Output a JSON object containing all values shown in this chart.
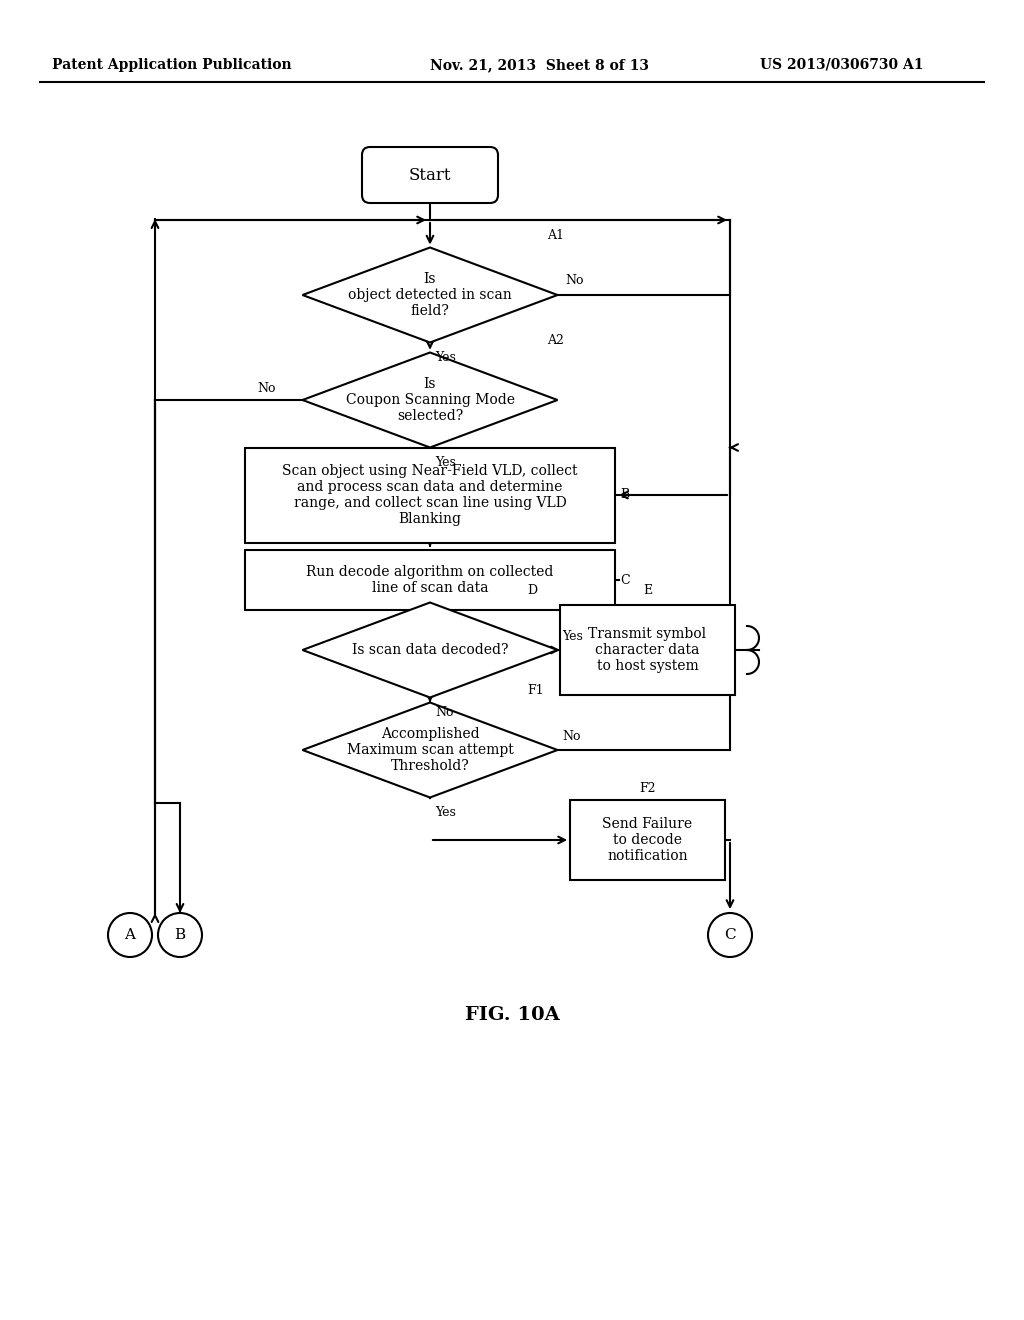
{
  "bg_color": "#ffffff",
  "line_color": "#000000",
  "header_left": "Patent Application Publication",
  "header_mid": "Nov. 21, 2013  Sheet 8 of 13",
  "header_right": "US 2013/0306730 A1",
  "fig_caption": "FIG. 10A",
  "lw": 1.5,
  "start_text": "Start",
  "a1_text": "Is\nobject detected in scan\nfield?",
  "a2_text": "Is\nCoupon Scanning Mode\nselected?",
  "b_text": "Scan object using Near-Field VLD, collect\nand process scan data and determine\nrange, and collect scan line using VLD\nBlanking",
  "c_text": "Run decode algorithm on collected\nline of scan data",
  "d_text": "Is scan data decoded?",
  "e_text": "Transmit symbol\ncharacter data\nto host system",
  "f1_text": "Accomplished\nMaximum scan attempt\nThreshold?",
  "f2_text": "Send Failure\nto decode\nnotification"
}
